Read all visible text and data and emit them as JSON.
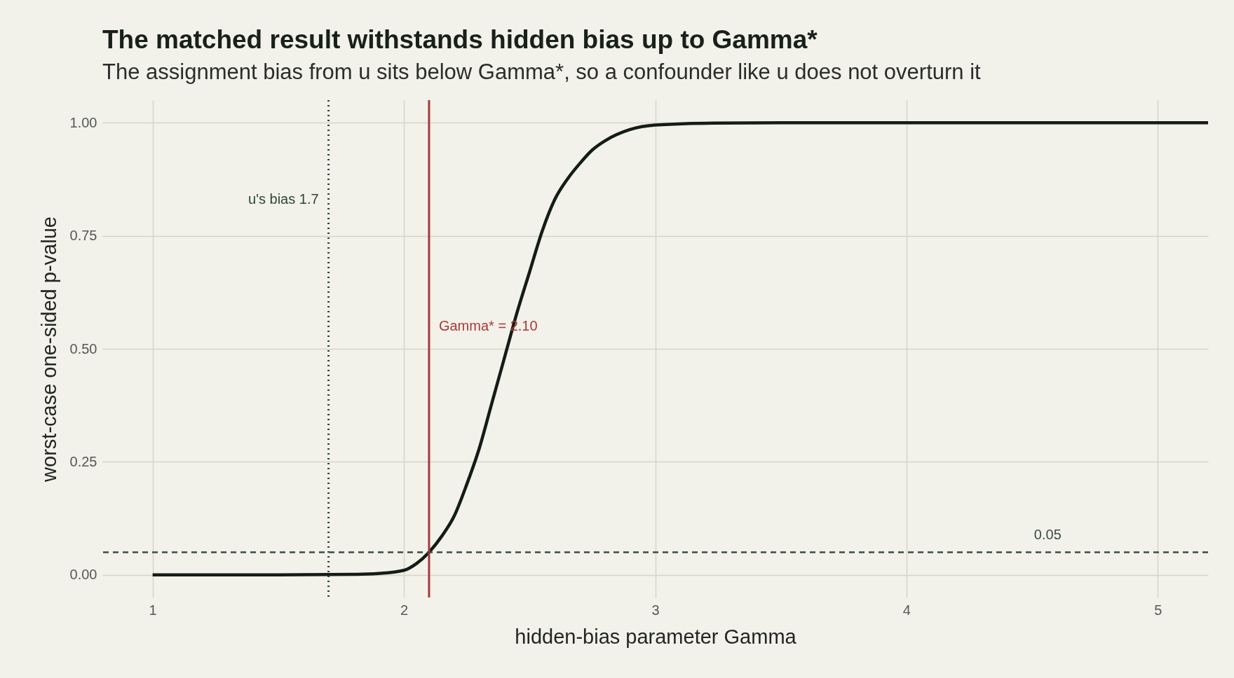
{
  "chart_data": {
    "type": "line",
    "title": "The matched result withstands hidden bias up to Gamma*",
    "subtitle": "The assignment bias from u sits below Gamma*, so a confounder like u does not overturn it",
    "xlabel": "hidden-bias parameter Gamma",
    "ylabel": "worst-case one-sided p-value",
    "x": [
      1,
      1.5,
      1.8,
      1.9,
      2.0,
      2.05,
      2.1,
      2.15,
      2.2,
      2.25,
      2.3,
      2.35,
      2.4,
      2.45,
      2.5,
      2.55,
      2.6,
      2.65,
      2.7,
      2.75,
      2.8,
      2.9,
      3.0,
      3.2,
      3.5,
      4,
      5.2
    ],
    "series": [
      {
        "color": "#141c16",
        "values": [
          0,
          0,
          0.001,
          0.003,
          0.01,
          0.025,
          0.05,
          0.085,
          0.13,
          0.2,
          0.28,
          0.38,
          0.48,
          0.58,
          0.67,
          0.76,
          0.83,
          0.875,
          0.91,
          0.94,
          0.96,
          0.985,
          0.995,
          0.999,
          1,
          1,
          1
        ]
      }
    ],
    "xlim": [
      0.8,
      5.2
    ],
    "ylim": [
      -0.05,
      1.05
    ],
    "xticks": [
      1,
      2,
      3,
      4,
      5
    ],
    "yticks": [
      {
        "value": 0,
        "label": "0.00"
      },
      {
        "value": 0.25,
        "label": "0.25"
      },
      {
        "value": 0.5,
        "label": "0.50"
      },
      {
        "value": 0.75,
        "label": "0.75"
      },
      {
        "value": 1,
        "label": "1.00"
      }
    ],
    "ref_lines": [
      {
        "axis": "x",
        "value": 1.7,
        "label": "u's bias 1.7",
        "color": "#2d4636",
        "line_style": "dotted"
      },
      {
        "axis": "x",
        "value": 2.1,
        "label": "Gamma* = 2.10",
        "color": "#a83a3a",
        "line_style": "solid"
      },
      {
        "axis": "y",
        "value": 0.05,
        "label": "0.05",
        "color": "#3d4d42",
        "line_style": "dashed"
      }
    ],
    "grid": true,
    "marker": "none",
    "line_style": "solid"
  }
}
